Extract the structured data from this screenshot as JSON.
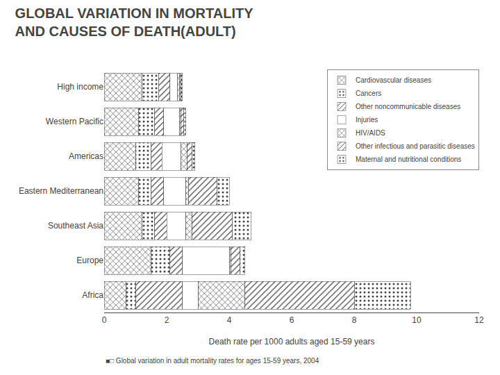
{
  "chart_data": {
    "type": "bar",
    "orientation": "horizontal",
    "stacked": true,
    "title": "GLOBAL VARIATION IN MORTALITY",
    "subtitle": "AND CAUSES OF DEATH(ADULT)",
    "x_label": "Death rate per 1000 adults aged 15-59 years",
    "categories": [
      "High income",
      "Western Pacific",
      "Americas",
      "Eastern Mediterranean",
      "Southeast Asia",
      "Europe",
      "Africa"
    ],
    "series": [
      {
        "name": "Cardiovascular diseases",
        "color": "#b0b0b0",
        "values": [
          1.2,
          1.1,
          1.0,
          1.1,
          1.2,
          1.5,
          0.7
        ]
      },
      {
        "name": "Cancers",
        "color": "#888888",
        "values": [
          0.55,
          0.5,
          0.5,
          0.4,
          0.4,
          0.6,
          0.3
        ]
      },
      {
        "name": "Other noncommunicable diseases",
        "color": "#cccccc",
        "values": [
          0.35,
          0.3,
          0.35,
          0.4,
          0.4,
          0.4,
          1.5
        ]
      },
      {
        "name": "Injuries",
        "color": "#ffffff",
        "values": [
          0.25,
          0.5,
          0.6,
          0.7,
          0.6,
          1.5,
          0.5
        ]
      },
      {
        "name": "HIV/AIDS",
        "color": "#999999",
        "values": [
          0.05,
          0.05,
          0.2,
          0.1,
          0.2,
          0.05,
          1.5
        ]
      },
      {
        "name": "Other infectious and parasitic diseases",
        "color": "#d0d0d0",
        "values": [
          0.05,
          0.1,
          0.15,
          0.9,
          1.3,
          0.3,
          3.5
        ]
      },
      {
        "name": "Maternal and nutritional conditions",
        "color": "#666666",
        "values": [
          0.05,
          0.05,
          0.1,
          0.4,
          0.6,
          0.15,
          1.8
        ]
      }
    ],
    "xlim": [
      0,
      12
    ],
    "xticks": [
      0,
      2,
      4,
      6,
      8,
      10,
      12
    ],
    "grid": false,
    "legend": "upper right",
    "annotations": [
      "■□ Global variation in adult mortality rates for ages 15-59 years, 2004"
    ]
  }
}
